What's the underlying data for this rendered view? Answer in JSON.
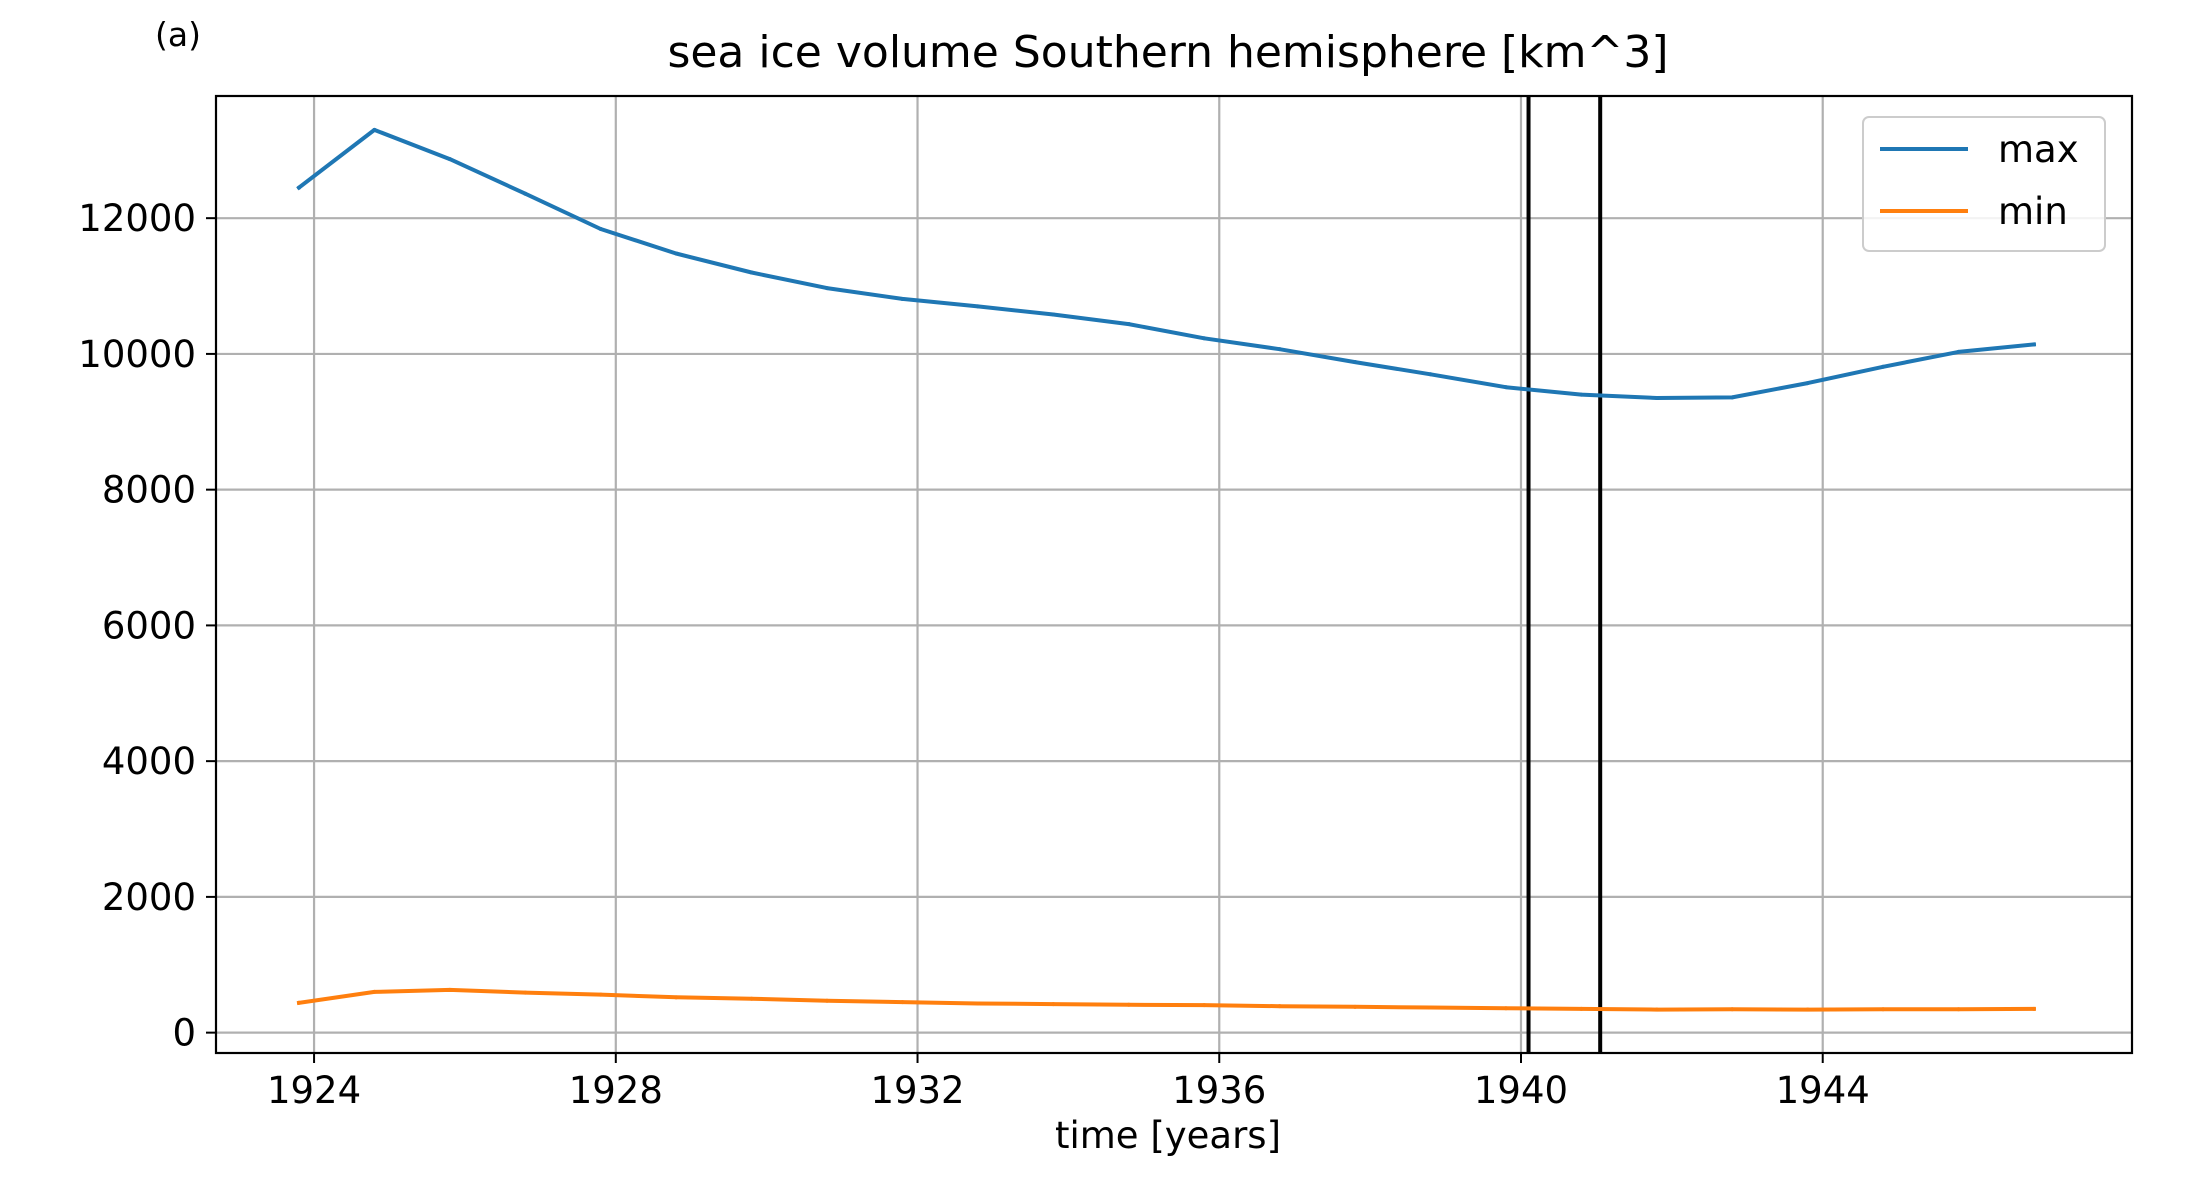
{
  "panel_label": "(a)",
  "chart_data": {
    "type": "line",
    "title": "sea ice volume Southern hemisphere [km^3]",
    "xlabel": "time [years]",
    "ylabel": "",
    "xlim": [
      1922.7,
      1948.1
    ],
    "ylim": [
      -300,
      13800
    ],
    "xticks": [
      1924,
      1928,
      1932,
      1936,
      1940,
      1944
    ],
    "xtick_labels": [
      "1924",
      "1928",
      "1932",
      "1936",
      "1940",
      "1944"
    ],
    "yticks": [
      0,
      2000,
      4000,
      6000,
      8000,
      10000,
      12000
    ],
    "ytick_labels": [
      "0",
      "2000",
      "4000",
      "6000",
      "8000",
      "10000",
      "12000"
    ],
    "grid": true,
    "legend_position": "top-right",
    "x": [
      1923.8,
      1924.8,
      1925.8,
      1926.8,
      1927.8,
      1928.8,
      1929.8,
      1930.8,
      1931.8,
      1932.8,
      1933.8,
      1934.8,
      1935.8,
      1936.8,
      1937.8,
      1938.8,
      1939.8,
      1940.8,
      1941.8,
      1942.8,
      1943.8,
      1944.8,
      1945.8,
      1946.8
    ],
    "series": [
      {
        "name": "max",
        "color": "#1f77b4",
        "values": [
          12450,
          13300,
          12870,
          12360,
          11840,
          11480,
          11200,
          10970,
          10810,
          10700,
          10580,
          10440,
          10230,
          10070,
          9880,
          9700,
          9510,
          9400,
          9350,
          9360,
          9570,
          9810,
          10030,
          10140
        ]
      },
      {
        "name": "min",
        "color": "#ff7f0e",
        "values": [
          440,
          600,
          630,
          590,
          560,
          520,
          500,
          470,
          450,
          430,
          420,
          410,
          405,
          390,
          380,
          370,
          360,
          350,
          340,
          345,
          340,
          345,
          345,
          350
        ]
      }
    ],
    "vertical_lines": [
      {
        "x": 1940.1,
        "color": "#000000"
      },
      {
        "x": 1941.05,
        "color": "#000000"
      }
    ]
  }
}
